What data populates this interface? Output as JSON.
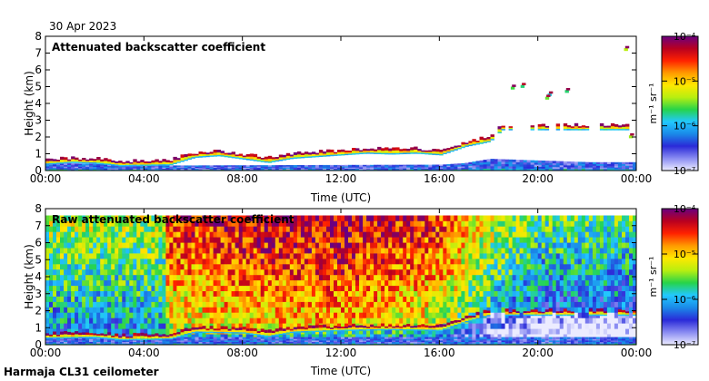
{
  "date_label": "30 Apr 2023",
  "footer_label": "Harmaja CL31 ceilometer",
  "colorbar": {
    "unit_label": "m⁻¹ sr⁻¹",
    "tick_labels": [
      "10⁻⁴",
      "10⁻⁵",
      "10⁻⁶",
      "10⁻⁷"
    ],
    "log_min": -7,
    "log_max": -4,
    "stops": [
      "#ececff",
      "#8a8cf2",
      "#2a2ad8",
      "#1a8ae8",
      "#22c8ff",
      "#26d44a",
      "#b8ee10",
      "#ffe800",
      "#ff9a00",
      "#ff2200",
      "#b80020",
      "#6a0080"
    ]
  },
  "chart_data": [
    {
      "type": "heatmap",
      "title": "Attenuated backscatter coefficient",
      "xlabel": "Time (UTC)",
      "ylabel": "Height (km)",
      "xlim": [
        0,
        24
      ],
      "ylim": [
        0,
        8
      ],
      "x_ticks": [
        0,
        4,
        8,
        12,
        16,
        20,
        24
      ],
      "x_tick_labels": [
        "00:00",
        "04:00",
        "08:00",
        "12:00",
        "16:00",
        "20:00",
        "00:00"
      ],
      "y_ticks": [
        0,
        1,
        2,
        3,
        4,
        5,
        6,
        7,
        8
      ],
      "y_tick_labels": [
        "0",
        "1",
        "2",
        "3",
        "4",
        "5",
        "6",
        "7",
        "8"
      ],
      "cloud_base_km": [
        [
          0,
          0.45
        ],
        [
          1,
          0.55
        ],
        [
          2,
          0.5
        ],
        [
          3,
          0.35
        ],
        [
          5,
          0.4
        ],
        [
          6,
          0.85
        ],
        [
          7,
          0.95
        ],
        [
          8,
          0.75
        ],
        [
          9,
          0.55
        ],
        [
          10,
          0.8
        ],
        [
          11,
          0.9
        ],
        [
          12,
          1.0
        ],
        [
          13,
          1.1
        ],
        [
          14,
          1.05
        ],
        [
          15,
          1.1
        ],
        [
          16,
          1.0
        ],
        [
          17,
          1.5
        ],
        [
          18,
          1.8
        ],
        [
          18.5,
          2.5
        ]
      ],
      "aerosol_layer_top_km": [
        [
          0,
          0.45
        ],
        [
          3.5,
          0.35
        ],
        [
          5,
          0.3
        ],
        [
          16,
          0.35
        ],
        [
          17,
          0.45
        ],
        [
          18,
          0.7
        ],
        [
          20,
          0.6
        ],
        [
          22,
          0.5
        ],
        [
          24,
          0.5
        ]
      ],
      "scattered_features": [
        {
          "hour": 18.9,
          "height_km": 5.0
        },
        {
          "hour": 19.3,
          "height_km": 5.1
        },
        {
          "hour": 20.4,
          "height_km": 4.6
        },
        {
          "hour": 20.3,
          "height_km": 4.4
        },
        {
          "hour": 21.1,
          "height_km": 4.8
        },
        {
          "hour": 23.5,
          "height_km": 7.3
        },
        {
          "hour": 23.7,
          "height_km": 2.1
        }
      ]
    },
    {
      "type": "heatmap",
      "title": "Raw attenuated backscatter coefficient",
      "xlabel": "Time (UTC)",
      "ylabel": "Height (km)",
      "xlim": [
        0,
        24
      ],
      "ylim": [
        0,
        8
      ],
      "x_ticks": [
        0,
        4,
        8,
        12,
        16,
        20,
        24
      ],
      "x_tick_labels": [
        "00:00",
        "04:00",
        "08:00",
        "12:00",
        "16:00",
        "20:00",
        "00:00"
      ],
      "y_ticks": [
        0,
        1,
        2,
        3,
        4,
        5,
        6,
        7,
        8
      ],
      "y_tick_labels": [
        "0",
        "1",
        "2",
        "3",
        "4",
        "5",
        "6",
        "7",
        "8"
      ],
      "data_top_km": 7.6,
      "noise_signal_log10": [
        [
          0,
          -5.6
        ],
        [
          4.8,
          -5.6
        ],
        [
          4.9,
          -4.8
        ],
        [
          8,
          -4.6
        ],
        [
          12,
          -4.5
        ],
        [
          16,
          -4.8
        ],
        [
          18,
          -5.5
        ],
        [
          20,
          -5.9
        ],
        [
          24,
          -5.9
        ]
      ],
      "cloud_base_km": [
        [
          0,
          0.45
        ],
        [
          2,
          0.5
        ],
        [
          3,
          0.35
        ],
        [
          5,
          0.4
        ],
        [
          6,
          0.8
        ],
        [
          8,
          0.75
        ],
        [
          9,
          0.55
        ],
        [
          10,
          0.8
        ],
        [
          12,
          0.9
        ],
        [
          14,
          0.95
        ],
        [
          16,
          0.9
        ],
        [
          17,
          1.4
        ],
        [
          18,
          1.8
        ]
      ]
    }
  ]
}
